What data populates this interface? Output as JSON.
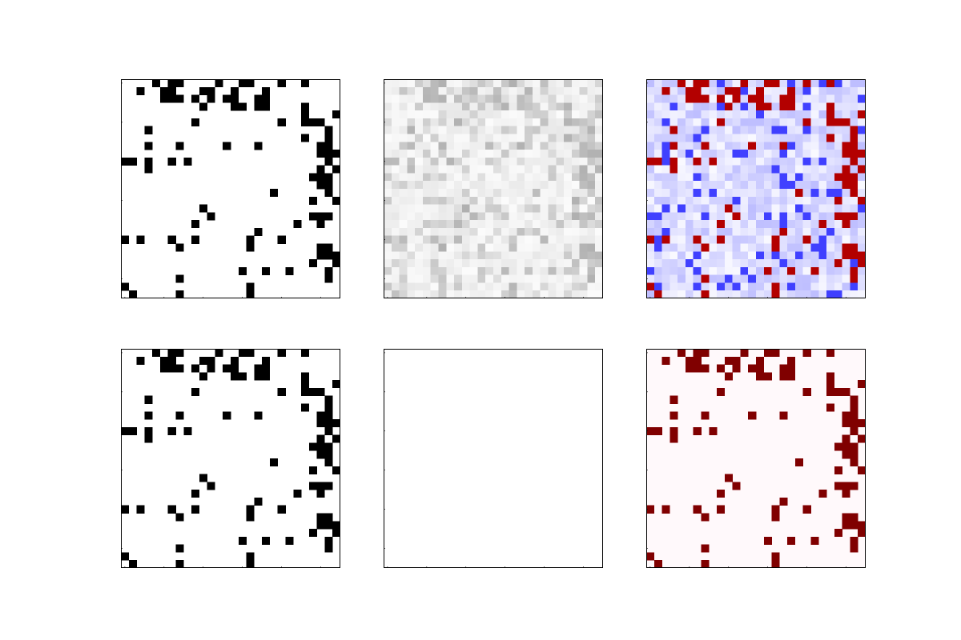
{
  "figure": {
    "rows": 2,
    "cols": 3,
    "background": "#ffffff"
  },
  "chart_data": [
    {
      "type": "heatmap",
      "name": "binary-matrix-top",
      "title": "",
      "colormap": "binary",
      "size": 28,
      "pattern": ".......#.#..#..#.....#..#...|.....#..........#.###......#..#.....|......##..#....##..##........|......###.#.#..#.#.#....#...|..........................#..|.........#...#.#....#..#.#..#|.........................##.....|..............#....#....#..##..|.......#......#.#..........#.|..#.##....#....................#.|...........................#..|......................#.........|......#.........................|.........................#......|.........................###.....|.........................##......|........#.........##.......#....|..#...#..........................|..........#...#..........##.....|.........................##.....|....#..........#.....#.....|#..........#...#.......#.....|.......#...........#......|.....#.....................#|",
      "note": ""
    },
    {
      "type": "heatmap",
      "name": "gray-matrix-top",
      "title": "",
      "colormap": "greys",
      "size": 28
    },
    {
      "type": "heatmap",
      "name": "bwr-matrix-top",
      "title": "",
      "colormap": "bwr",
      "size": 28
    },
    {
      "type": "heatmap",
      "name": "binary-matrix-bottom",
      "title": "",
      "colormap": "binary",
      "size": 28
    },
    {
      "type": "heatmap",
      "name": "empty-matrix-bottom",
      "title": "",
      "colormap": "white",
      "size": 28
    },
    {
      "type": "heatmap",
      "name": "seismic-matrix-bottom",
      "title": "",
      "colormap": "seismic",
      "size": 28
    }
  ],
  "colors": {
    "axes_edge": "#000000",
    "binary_on": "#000000",
    "binary_off": "#ffffff",
    "red_strong": "#b30000",
    "blue_strong": "#4040ff",
    "pink_bg": "#fff9fb",
    "dark_red": "#800000"
  },
  "grid_cells": [
    [
      0,
      4
    ],
    [
      0,
      6
    ],
    [
      0,
      7
    ],
    [
      0,
      12
    ],
    [
      0,
      15
    ],
    [
      0,
      16
    ],
    [
      0,
      20
    ],
    [
      0,
      23
    ],
    [
      1,
      2
    ],
    [
      1,
      5
    ],
    [
      1,
      6
    ],
    [
      1,
      10
    ],
    [
      1,
      11
    ],
    [
      1,
      14
    ],
    [
      1,
      18
    ],
    [
      2,
      5
    ],
    [
      2,
      6
    ],
    [
      2,
      7
    ],
    [
      2,
      9
    ],
    [
      2,
      11
    ],
    [
      2,
      13
    ],
    [
      2,
      14
    ],
    [
      2,
      17
    ],
    [
      2,
      18
    ],
    [
      3,
      10
    ],
    [
      3,
      14
    ],
    [
      3,
      15
    ],
    [
      3,
      17
    ],
    [
      3,
      18
    ],
    [
      3,
      23
    ],
    [
      4,
      23
    ],
    [
      4,
      27
    ],
    [
      5,
      9
    ],
    [
      5,
      20
    ],
    [
      5,
      23
    ],
    [
      5,
      24
    ],
    [
      5,
      25
    ],
    [
      6,
      3
    ],
    [
      6,
      26
    ],
    [
      7,
      23
    ],
    [
      7,
      26
    ],
    [
      8,
      3
    ],
    [
      8,
      7
    ],
    [
      8,
      13
    ],
    [
      8,
      17
    ],
    [
      8,
      25
    ],
    [
      8,
      26
    ],
    [
      9,
      25
    ],
    [
      9,
      26
    ],
    [
      9,
      27
    ],
    [
      10,
      0
    ],
    [
      10,
      1
    ],
    [
      10,
      3
    ],
    [
      10,
      6
    ],
    [
      10,
      8
    ],
    [
      10,
      26
    ],
    [
      11,
      3
    ],
    [
      11,
      25
    ],
    [
      11,
      27
    ],
    [
      12,
      24
    ],
    [
      12,
      25
    ],
    [
      12,
      26
    ],
    [
      13,
      25
    ],
    [
      13,
      26
    ],
    [
      14,
      19
    ],
    [
      14,
      26
    ],
    [
      15,
      24
    ],
    [
      15,
      27
    ],
    [
      16,
      10
    ],
    [
      17,
      11
    ],
    [
      17,
      24
    ],
    [
      17,
      25
    ],
    [
      17,
      26
    ],
    [
      18,
      9
    ],
    [
      18,
      22
    ],
    [
      18,
      25
    ],
    [
      19,
      17
    ],
    [
      20,
      0
    ],
    [
      20,
      2
    ],
    [
      20,
      6
    ],
    [
      20,
      9
    ],
    [
      20,
      16
    ],
    [
      20,
      20
    ],
    [
      21,
      7
    ],
    [
      21,
      16
    ],
    [
      21,
      25
    ],
    [
      21,
      26
    ],
    [
      22,
      25
    ],
    [
      22,
      26
    ],
    [
      22,
      27
    ],
    [
      23,
      24
    ],
    [
      23,
      27
    ],
    [
      24,
      15
    ],
    [
      24,
      18
    ],
    [
      24,
      21
    ],
    [
      24,
      26
    ],
    [
      25,
      7
    ],
    [
      25,
      26
    ],
    [
      26,
      0
    ],
    [
      26,
      16
    ],
    [
      27,
      1
    ],
    [
      27,
      7
    ],
    [
      27,
      16
    ]
  ]
}
